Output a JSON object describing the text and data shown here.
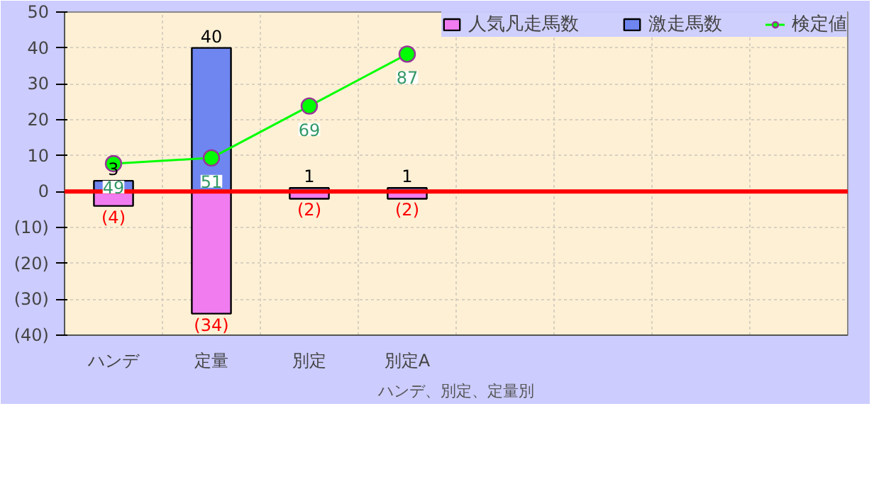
{
  "chart_data": {
    "type": "bar",
    "xlabel": "ハンデ、別定、定量別",
    "categories": [
      "ハンデ",
      "定量",
      "別定",
      "別定A",
      null,
      null,
      null,
      null
    ],
    "series": [
      {
        "name": "人気凡走馬数",
        "color": "#f07cf0",
        "values": [
          -4,
          -34,
          -2,
          -2,
          null,
          null,
          null,
          null
        ],
        "value_labels": [
          "(4)",
          "(34)",
          "(2)",
          "(2)",
          null,
          null,
          null,
          null
        ]
      },
      {
        "name": "激走馬数",
        "color": "#6f86f0",
        "values": [
          3,
          40,
          1,
          1,
          null,
          null,
          null,
          null
        ],
        "value_labels": [
          "3",
          "40",
          "1",
          "1",
          null,
          null,
          null,
          null
        ]
      },
      {
        "name": "検定値",
        "type": "line",
        "axis": "y2",
        "color": "#00ff00",
        "values": [
          49,
          51,
          69,
          87,
          null,
          null,
          null,
          null
        ],
        "value_labels": [
          "49",
          "51",
          "69",
          "87",
          null,
          null,
          null,
          null
        ]
      }
    ],
    "ylim": [
      -40,
      50
    ],
    "yticks": [
      {
        "value": -40,
        "label": "(40)"
      },
      {
        "value": -30,
        "label": "(30)"
      },
      {
        "value": -20,
        "label": "(20)"
      },
      {
        "value": -10,
        "label": "(10)"
      },
      0,
      10,
      20,
      30,
      40,
      50
    ],
    "y2lim": [
      -10.5,
      101.6
    ],
    "ref_lines": [
      {
        "axis": "y",
        "value": 0,
        "color": "#ff0000"
      }
    ],
    "grid": true,
    "stacked": true,
    "legend": "top right",
    "marker": "circle"
  }
}
